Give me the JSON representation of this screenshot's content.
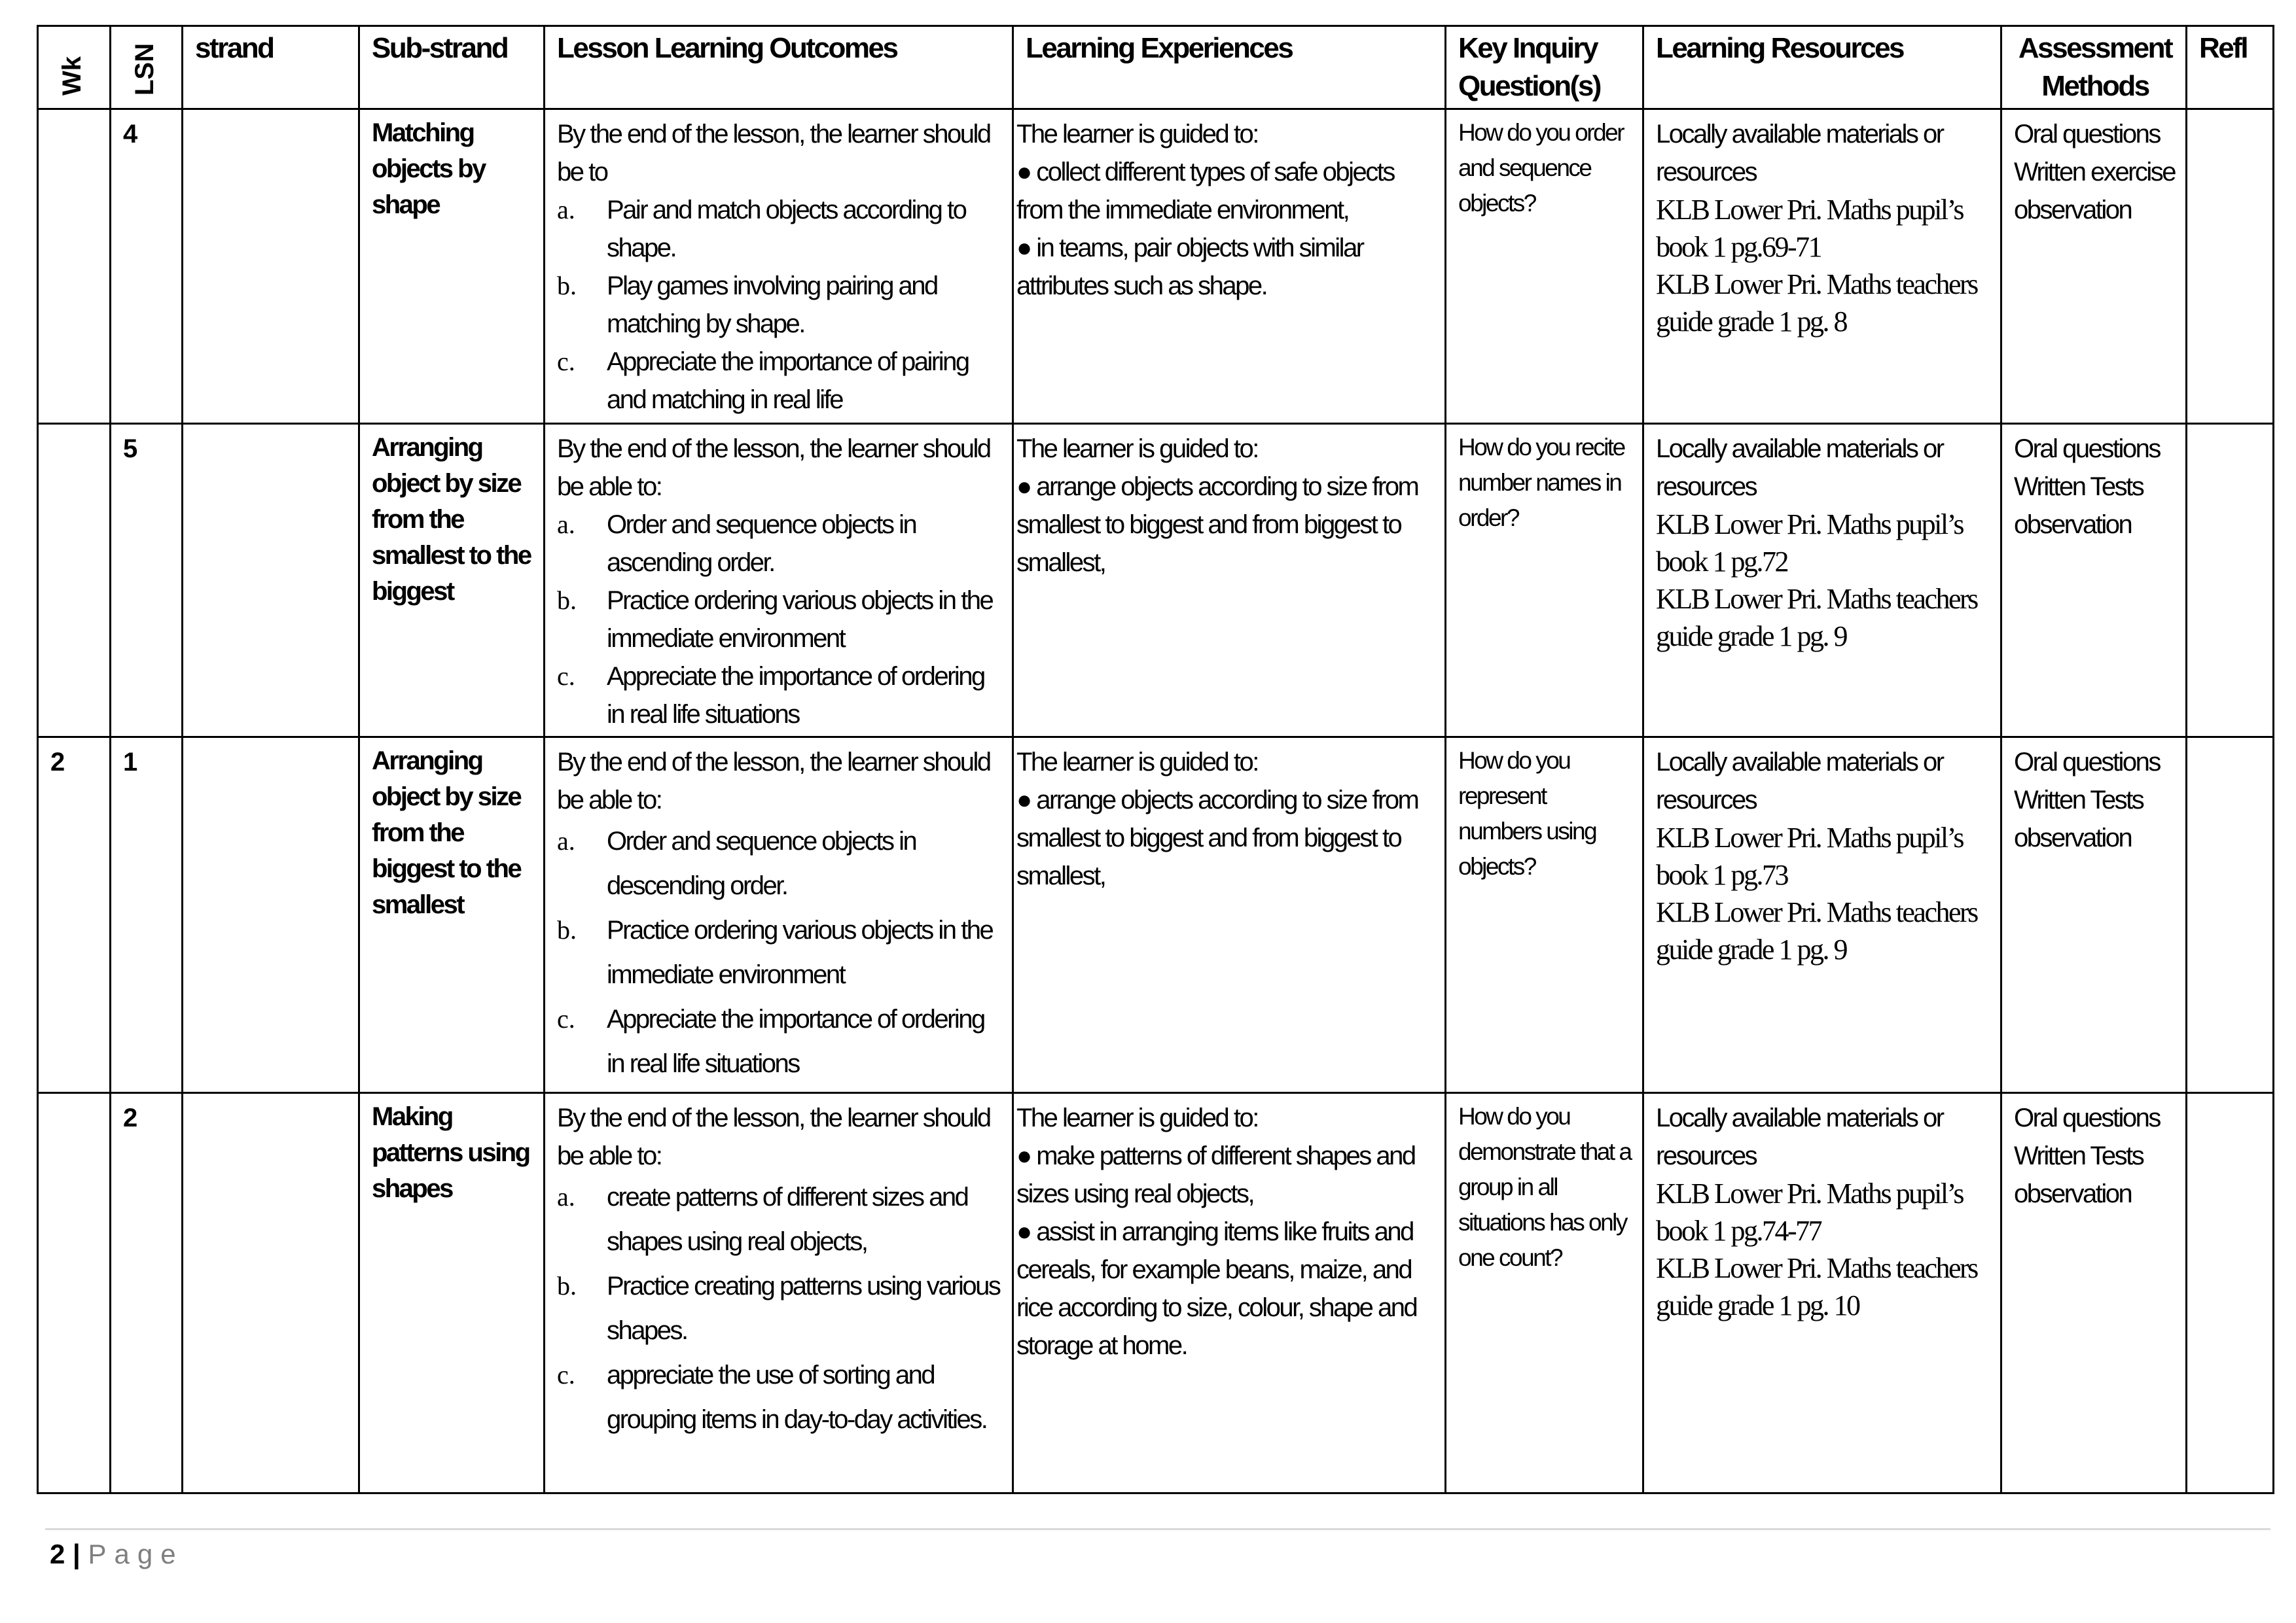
{
  "headers": {
    "wk": "Wk",
    "lsn": "LSN",
    "strand": "strand",
    "sub_strand": "Sub-strand",
    "outcomes": "Lesson Learning Outcomes",
    "experiences": "Learning Experiences",
    "kiq": "Key Inquiry Question(s)",
    "resources": "Learning Resources",
    "assessment": "Assessment Methods",
    "refl": "Refl"
  },
  "rows": [
    {
      "wk": "",
      "lsn": "4",
      "strand": "",
      "sub_strand": "Matching objects by shape",
      "outcomes_intro": "By the end of the lesson, the learner should be to",
      "outcomes": [
        {
          "marker": "a.",
          "text": "Pair and match objects according to shape."
        },
        {
          "marker": "b.",
          "text": "Play games involving pairing and matching by shape."
        },
        {
          "marker": "c.",
          "text": "Appreciate the importance of pairing and matching in real life"
        }
      ],
      "experiences_intro": "The learner is guided to:",
      "experiences": [
        "● collect different types of safe objects from the immediate environment,",
        "● in teams, pair objects with similar attributes such as shape."
      ],
      "kiq": "How do you order and sequence objects?",
      "resources_local": "Locally available materials or resources",
      "resources_books": [
        "KLB Lower Pri. Maths pupil’s book 1 pg.69-71",
        "KLB Lower Pri. Maths teachers guide grade 1 pg. 8"
      ],
      "assessment": [
        "Oral questions",
        "Written exercise",
        "observation"
      ],
      "refl": ""
    },
    {
      "wk": "",
      "lsn": "5",
      "strand": "",
      "sub_strand": "Arranging object by size from the smallest to the biggest",
      "outcomes_intro": "By the end of the lesson, the learner should be able to:",
      "outcomes": [
        {
          "marker": "a.",
          "text": "Order and sequence objects in ascending order."
        },
        {
          "marker": "b.",
          "text": "Practice ordering various objects in the immediate environment"
        },
        {
          "marker": "c.",
          "text": "Appreciate the importance of ordering in real life situations"
        }
      ],
      "experiences_intro": "The learner is guided to:",
      "experiences": [
        "● arrange objects according to size from smallest to biggest and from biggest to smallest,"
      ],
      "kiq": "How do you recite number names in order?",
      "resources_local": "Locally available materials or resources",
      "resources_books": [
        "KLB Lower Pri. Maths pupil’s book 1 pg.72",
        "KLB Lower Pri. Maths teachers guide grade 1 pg. 9"
      ],
      "assessment": [
        "Oral questions",
        "Written Tests",
        "observation"
      ],
      "refl": ""
    },
    {
      "wk": "2",
      "lsn": "1",
      "strand": "",
      "sub_strand": "Arranging object by size from the biggest to the smallest",
      "outcomes_intro": "By the end of the lesson, the learner should be able to:",
      "outcomes": [
        {
          "marker": "a.",
          "text": "Order and sequence objects in descending order."
        },
        {
          "marker": "b.",
          "text": "Practice ordering various objects in the immediate environment"
        },
        {
          "marker": "c.",
          "text": "Appreciate the importance of ordering in real life situations"
        }
      ],
      "experiences_intro": "The learner is guided to:",
      "experiences": [
        "● arrange objects according to size from smallest to biggest and from biggest to smallest,"
      ],
      "kiq": "How do you represent numbers using objects?",
      "resources_local": "Locally available materials or resources",
      "resources_books": [
        "KLB Lower Pri. Maths pupil’s book 1 pg.73",
        "KLB Lower Pri. Maths teachers guide grade 1 pg. 9"
      ],
      "assessment": [
        "Oral questions",
        "Written Tests",
        "observation"
      ],
      "refl": ""
    },
    {
      "wk": "",
      "lsn": "2",
      "strand": "",
      "sub_strand": "Making patterns using shapes",
      "outcomes_intro": "By the end of the lesson, the learner should be able to:",
      "outcomes": [
        {
          "marker": "a.",
          "text": "create patterns of different sizes and shapes using real objects,"
        },
        {
          "marker": "b.",
          "text": "Practice creating patterns using various shapes."
        },
        {
          "marker": "c.",
          "text": "appreciate the use of sorting and grouping items in day-to-day activities."
        }
      ],
      "experiences_intro": "The learner is guided to:",
      "experiences": [
        "● make patterns of different shapes and sizes using real objects,",
        "● assist in arranging items like fruits and cereals, for example beans, maize, and rice according to size, colour, shape and storage at home."
      ],
      "kiq": "How do you demonstrate that a group in all situations has only one count?",
      "resources_local": "Locally available materials or resources",
      "resources_books": [
        "KLB Lower Pri. Maths pupil’s book 1 pg.74-77",
        "KLB Lower Pri. Maths teachers guide grade 1 pg. 10"
      ],
      "assessment": [
        "Oral questions",
        "Written Tests",
        "observation"
      ],
      "refl": ""
    }
  ],
  "footer": {
    "page_number": "2",
    "separator": "|",
    "page_label": "Page"
  }
}
